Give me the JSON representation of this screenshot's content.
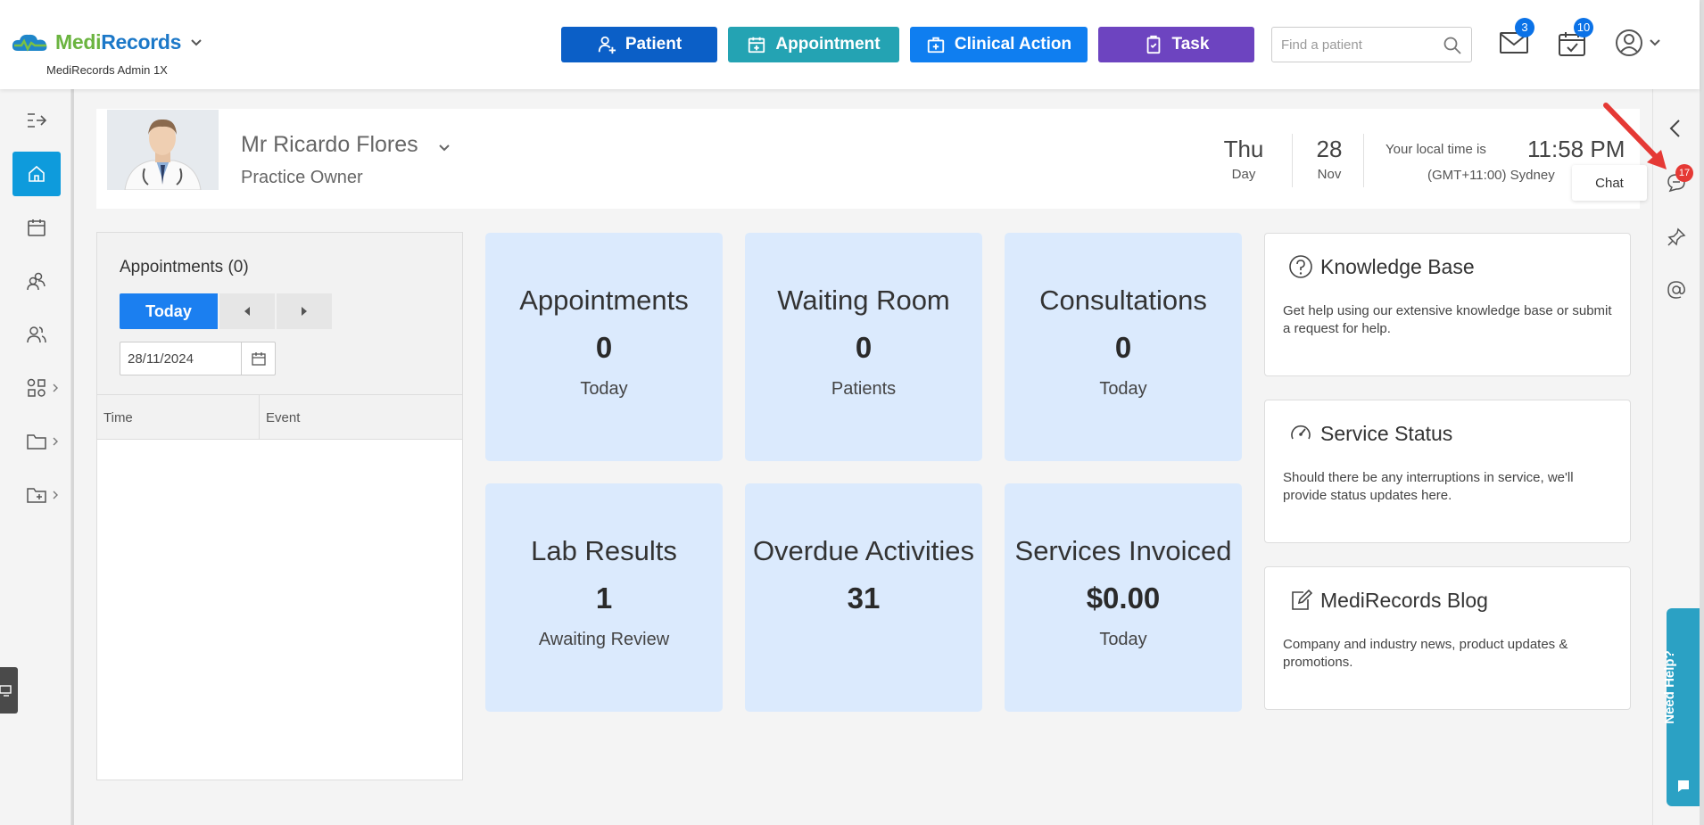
{
  "brand": {
    "name_part1": "Medi",
    "name_part2": "Records",
    "subtitle": "MediRecords Admin 1X"
  },
  "quick_actions": {
    "patient": "Patient",
    "appointment": "Appointment",
    "clinical_action": "Clinical Action",
    "task": "Task"
  },
  "search": {
    "placeholder": "Find a patient"
  },
  "notifications": {
    "messages_count": "3",
    "tasks_count": "10"
  },
  "profile": {
    "name": "Mr Ricardo Flores",
    "role": "Practice Owner",
    "day_name": "Thu",
    "day_label": "Day",
    "date_num": "28",
    "month": "Nov",
    "time_label": "Your local time is",
    "time": "11:58 PM",
    "timezone": "(GMT+11:00) Sydney"
  },
  "appointments_panel": {
    "title": "Appointments (0)",
    "today_button": "Today",
    "date_value": "28/11/2024",
    "columns": [
      "Time",
      "Event"
    ]
  },
  "tiles": [
    {
      "title": "Appointments",
      "value": "0",
      "subtitle": "Today"
    },
    {
      "title": "Waiting Room",
      "value": "0",
      "subtitle": "Patients"
    },
    {
      "title": "Consultations",
      "value": "0",
      "subtitle": "Today"
    },
    {
      "title": "Lab Results",
      "value": "1",
      "subtitle": "Awaiting Review"
    },
    {
      "title": "Overdue Activities",
      "value": "31",
      "subtitle": ""
    },
    {
      "title": "Services Invoiced",
      "value": "$0.00",
      "subtitle": "Today"
    }
  ],
  "cards": [
    {
      "title": "Knowledge Base",
      "desc": "Get help using our extensive knowledge base or submit a request for help."
    },
    {
      "title": "Service Status",
      "desc": "Should there be any interruptions in service, we'll provide status updates here."
    },
    {
      "title": "MediRecords Blog",
      "desc": "Company and industry news, product updates & promotions."
    }
  ],
  "right_sidebar": {
    "chat_badge": "17",
    "chat_tooltip": "Chat",
    "need_help": "Need Help?"
  },
  "colors": {
    "patient_btn": "#0b5fc7",
    "appointment_btn": "#24a3b3",
    "clinical_btn": "#0f7ef0",
    "task_btn": "#6d44c0",
    "tile_bg": "#dbeafd",
    "active_nav": "#0e9bdc"
  }
}
